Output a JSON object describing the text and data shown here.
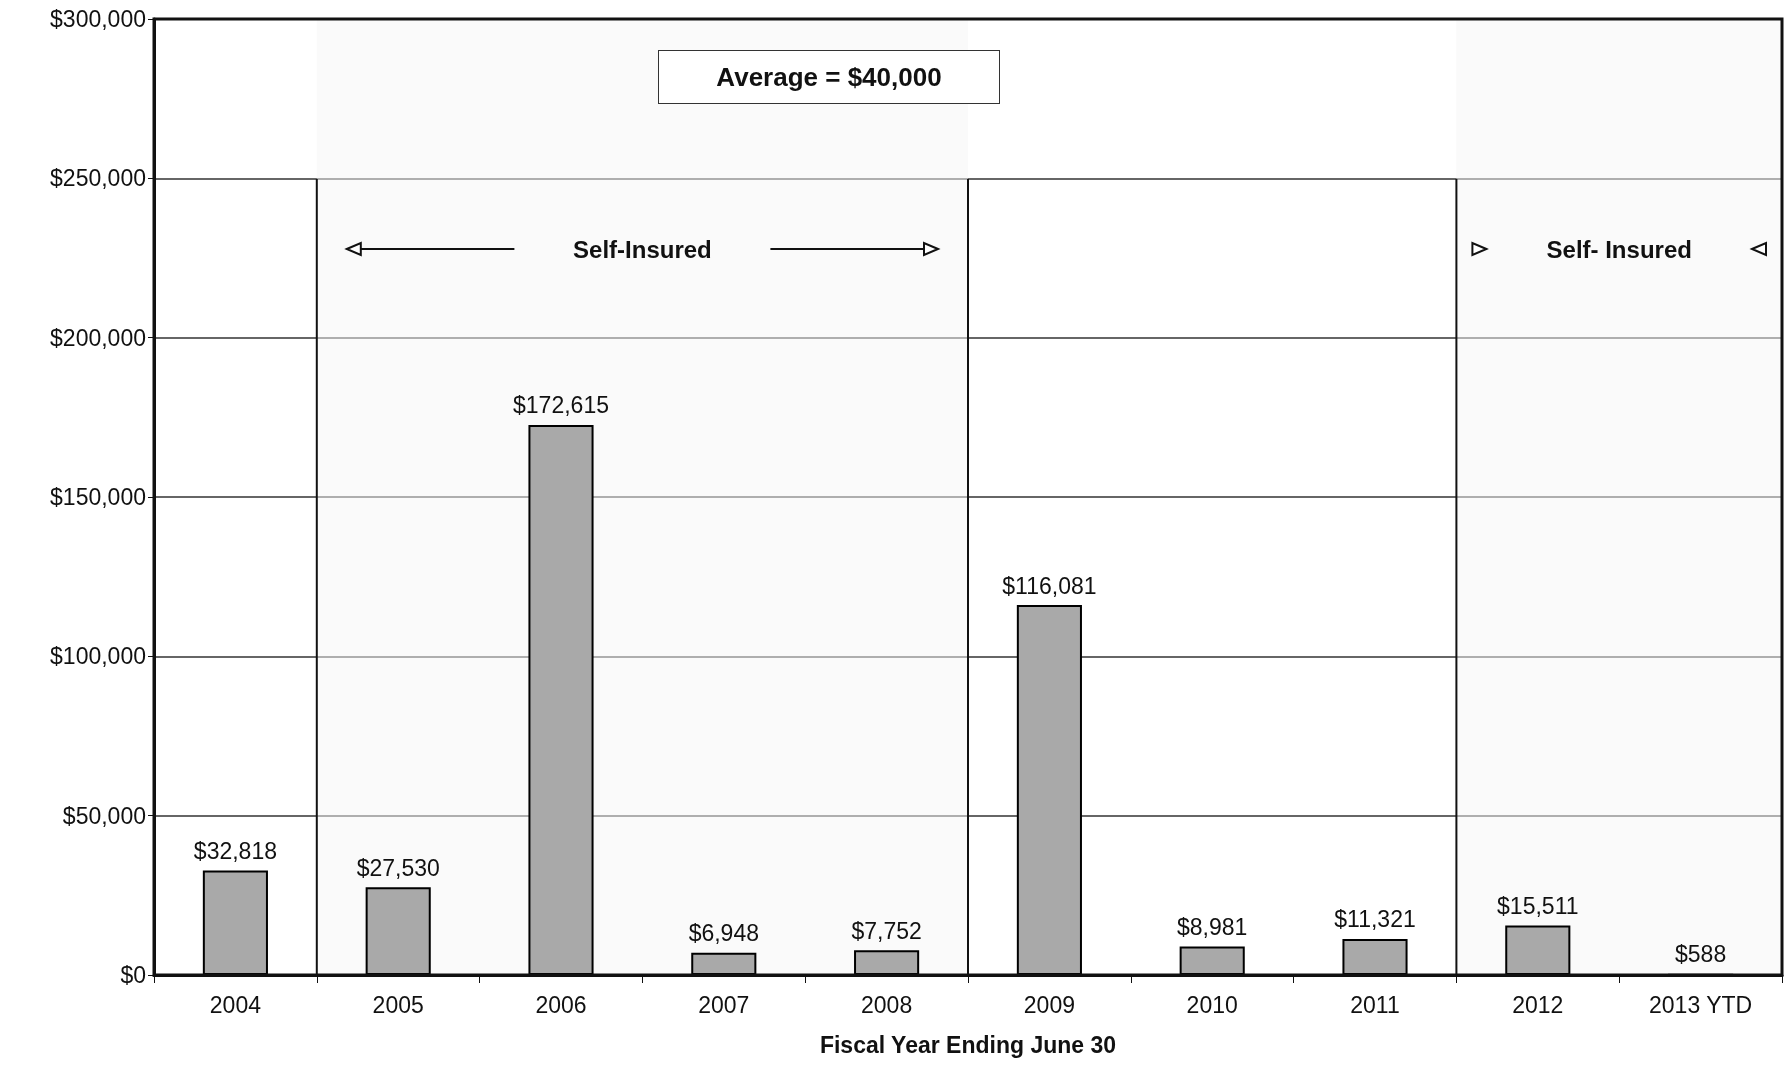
{
  "chart_data": {
    "type": "bar",
    "xlabel": "Fiscal Year Ending June 30",
    "categories": [
      "2004",
      "2005",
      "2006",
      "2007",
      "2008",
      "2009",
      "2010",
      "2011",
      "2012",
      "2013 YTD"
    ],
    "values": [
      32818,
      27530,
      172615,
      6948,
      7752,
      116081,
      8981,
      11321,
      15511,
      588
    ],
    "value_labels": [
      "$32,818",
      "$27,530",
      "$172,615",
      "$6,948",
      "$7,752",
      "$116,081",
      "$8,981",
      "$11,321",
      "$15,511",
      "$588"
    ],
    "color": "#a9a9a9",
    "ylim": [
      0,
      300000
    ],
    "yticks": [
      {
        "value": 0,
        "label": "$0"
      },
      {
        "value": 50000,
        "label": "$50,000"
      },
      {
        "value": 100000,
        "label": "$100,000"
      },
      {
        "value": 150000,
        "label": "$150,000"
      },
      {
        "value": 200000,
        "label": "$200,000"
      },
      {
        "value": 250000,
        "label": "$250,000"
      },
      {
        "value": 300000,
        "label": "$300,000"
      }
    ],
    "grid": "y",
    "bands": [
      {
        "axis": "x",
        "from": "2005",
        "to": "2008",
        "label": "Self-Insured",
        "color": "#f6f6f6"
      },
      {
        "axis": "x",
        "from": "2012",
        "to": "2013 YTD",
        "label": "Self- Insured",
        "color": "#f6f6f6"
      }
    ],
    "annotations": [
      "Average = $40,000"
    ]
  }
}
